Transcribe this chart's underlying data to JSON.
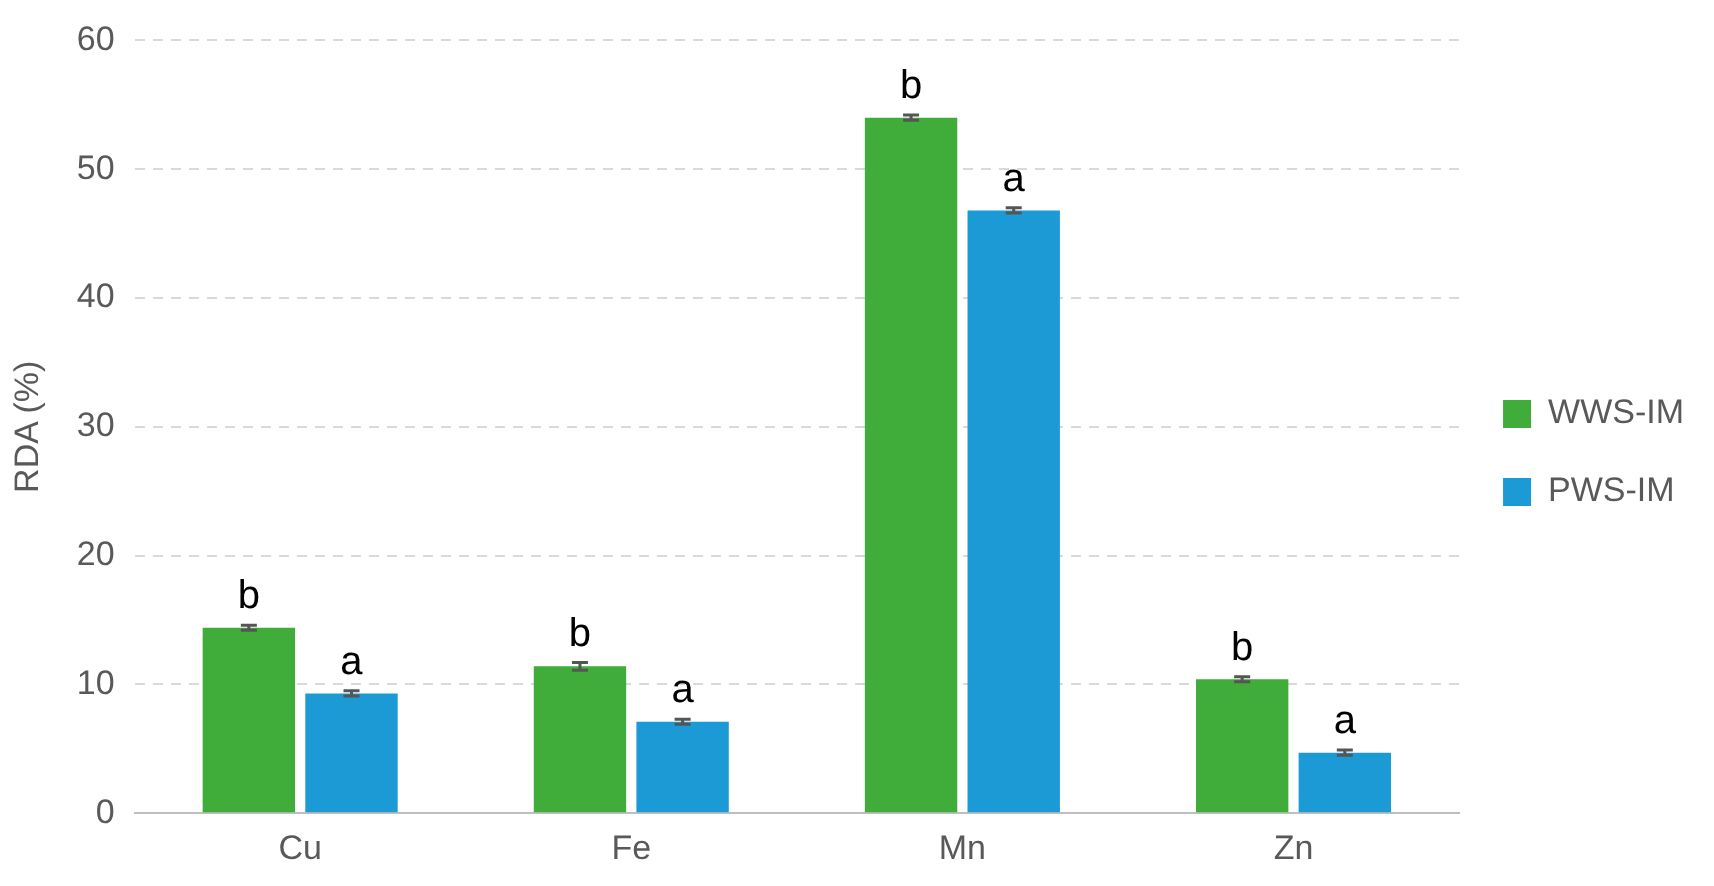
{
  "chart_data": {
    "type": "bar",
    "ylabel": "RDA (%)",
    "categories": [
      "Cu",
      "Fe",
      "Mn",
      "Zn"
    ],
    "series": [
      {
        "name": "WWS-IM",
        "color": "#40ad3a",
        "values": [
          14.4,
          11.4,
          54.0,
          10.4
        ],
        "errors": [
          0.2,
          0.3,
          0.2,
          0.2
        ],
        "value_labels": [
          "b",
          "b",
          "b",
          "b"
        ]
      },
      {
        "name": "PWS-IM",
        "color": "#1c9ad6",
        "values": [
          9.3,
          7.1,
          46.8,
          4.7
        ],
        "errors": [
          0.2,
          0.2,
          0.2,
          0.2
        ],
        "value_labels": [
          "a",
          "a",
          "a",
          "a"
        ]
      }
    ],
    "ylim": [
      0,
      60
    ],
    "yticks": [
      0,
      10,
      20,
      30,
      40,
      50,
      60
    ],
    "grid": "y",
    "legend": "right"
  }
}
